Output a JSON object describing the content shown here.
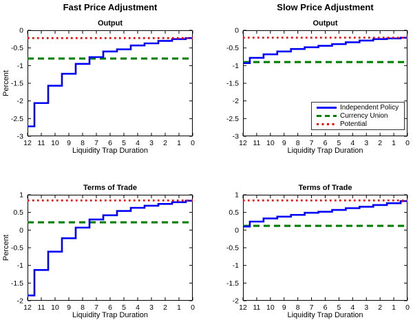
{
  "figure": {
    "column_titles": {
      "left": "Fast Price Adjustment",
      "right": "Slow Price Adjustment"
    }
  },
  "legend": {
    "position": "southeast-of-slow-output-panel",
    "entries": [
      {
        "label": "Independent Policy",
        "color": "#0000ff",
        "style": "solid"
      },
      {
        "label": "Currency Union",
        "color": "#008000",
        "style": "dashed"
      },
      {
        "label": "Potential",
        "color": "#ff0000",
        "style": "dotted"
      }
    ]
  },
  "chart_data": [
    {
      "id": "fast-output",
      "type": "line",
      "subtype": "stairs",
      "column": "Fast Price Adjustment",
      "title": "Output",
      "xlabel": "Liquidity Trap Duration",
      "ylabel": "Percent",
      "xlim": [
        12,
        0
      ],
      "ylim": [
        -3,
        0
      ],
      "x_axis_reversed": true,
      "grid": false,
      "xticks": [
        12,
        11,
        10,
        9,
        8,
        7,
        6,
        5,
        4,
        3,
        2,
        1,
        0
      ],
      "yticks": [
        0,
        -0.5,
        -1,
        -1.5,
        -2,
        -2.5,
        -3
      ],
      "x": [
        12,
        11,
        10,
        9,
        8,
        7,
        6,
        5,
        4,
        3,
        2,
        1,
        0
      ],
      "series": [
        {
          "name": "Independent Policy",
          "color": "#0000ff",
          "style": "solid",
          "values": [
            -2.72,
            -2.06,
            -1.57,
            -1.23,
            -0.95,
            -0.76,
            -0.6,
            -0.54,
            -0.43,
            -0.37,
            -0.3,
            -0.25,
            -0.22
          ]
        },
        {
          "name": "Currency Union",
          "color": "#008000",
          "style": "dashed",
          "hline": -0.8
        },
        {
          "name": "Potential",
          "color": "#ff0000",
          "style": "dotted",
          "hline": -0.22
        }
      ]
    },
    {
      "id": "slow-output",
      "type": "line",
      "subtype": "stairs",
      "column": "Slow Price Adjustment",
      "title": "Output",
      "xlabel": "Liquidity Trap Duration",
      "ylabel": "Percent",
      "xlim": [
        12,
        0
      ],
      "ylim": [
        -3,
        0
      ],
      "x_axis_reversed": true,
      "grid": false,
      "has_legend": true,
      "xticks": [
        12,
        11,
        10,
        9,
        8,
        7,
        6,
        5,
        4,
        3,
        2,
        1,
        0
      ],
      "yticks": [
        0,
        -0.5,
        -1,
        -1.5,
        -2,
        -2.5,
        -3
      ],
      "x": [
        12,
        11,
        10,
        9,
        8,
        7,
        6,
        5,
        4,
        3,
        2,
        1,
        0
      ],
      "series": [
        {
          "name": "Independent Policy",
          "color": "#0000ff",
          "style": "solid",
          "values": [
            -0.93,
            -0.78,
            -0.68,
            -0.6,
            -0.53,
            -0.48,
            -0.44,
            -0.39,
            -0.34,
            -0.29,
            -0.25,
            -0.23,
            -0.21
          ]
        },
        {
          "name": "Currency Union",
          "color": "#008000",
          "style": "dashed",
          "hline": -0.9
        },
        {
          "name": "Potential",
          "color": "#ff0000",
          "style": "dotted",
          "hline": -0.21
        }
      ]
    },
    {
      "id": "fast-terms-of-trade",
      "type": "line",
      "subtype": "stairs",
      "column": "Fast Price Adjustment",
      "title": "Terms of Trade",
      "xlabel": "Liquidity Trap Duration",
      "ylabel": "Percent",
      "xlim": [
        12,
        0
      ],
      "ylim": [
        -2,
        1
      ],
      "x_axis_reversed": true,
      "grid": false,
      "xticks": [
        12,
        11,
        10,
        9,
        8,
        7,
        6,
        5,
        4,
        3,
        2,
        1,
        0
      ],
      "yticks": [
        1,
        0.5,
        0,
        -0.5,
        -1,
        -1.5,
        -2
      ],
      "x": [
        12,
        11,
        10,
        9,
        8,
        7,
        6,
        5,
        4,
        3,
        2,
        1,
        0
      ],
      "series": [
        {
          "name": "Independent Policy",
          "color": "#0000ff",
          "style": "solid",
          "values": [
            -1.85,
            -1.13,
            -0.61,
            -0.23,
            0.07,
            0.3,
            0.42,
            0.54,
            0.63,
            0.69,
            0.74,
            0.79,
            0.83
          ]
        },
        {
          "name": "Currency Union",
          "color": "#008000",
          "style": "dashed",
          "hline": 0.22
        },
        {
          "name": "Potential",
          "color": "#ff0000",
          "style": "dotted",
          "hline": 0.84
        }
      ]
    },
    {
      "id": "slow-terms-of-trade",
      "type": "line",
      "subtype": "stairs",
      "column": "Slow Price Adjustment",
      "title": "Terms of Trade",
      "xlabel": "Liquidity Trap Duration",
      "ylabel": "Percent",
      "xlim": [
        12,
        0
      ],
      "ylim": [
        -2,
        1
      ],
      "x_axis_reversed": true,
      "grid": false,
      "xticks": [
        12,
        11,
        10,
        9,
        8,
        7,
        6,
        5,
        4,
        3,
        2,
        1,
        0
      ],
      "yticks": [
        1,
        0.5,
        0,
        -0.5,
        -1,
        -1.5,
        -2
      ],
      "x": [
        12,
        11,
        10,
        9,
        8,
        7,
        6,
        5,
        4,
        3,
        2,
        1,
        0
      ],
      "series": [
        {
          "name": "Independent Policy",
          "color": "#0000ff",
          "style": "solid",
          "values": [
            0.1,
            0.24,
            0.33,
            0.38,
            0.43,
            0.49,
            0.52,
            0.57,
            0.62,
            0.66,
            0.71,
            0.76,
            0.82
          ]
        },
        {
          "name": "Currency Union",
          "color": "#008000",
          "style": "dashed",
          "hline": 0.12
        },
        {
          "name": "Potential",
          "color": "#ff0000",
          "style": "dotted",
          "hline": 0.84
        }
      ]
    }
  ]
}
